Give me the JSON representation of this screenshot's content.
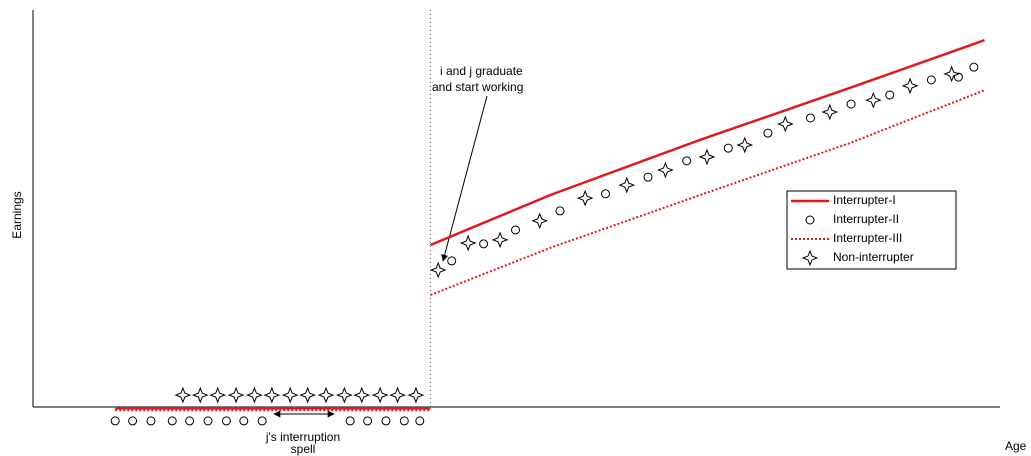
{
  "chart_data": {
    "type": "line",
    "xlabel": "Age",
    "ylabel": "Earnings",
    "xlim": [
      0,
      100
    ],
    "ylim": [
      0,
      100
    ],
    "vline": 41.1,
    "legend": "center right",
    "annotations": [
      "i and j graduate",
      "and start  working",
      "j's interruption",
      "spell"
    ],
    "series": [
      {
        "name": "Interrupter-I",
        "color": "#e0191e",
        "style": "solid",
        "x": [
          8.5,
          41.1,
          41.1,
          41.1,
          53.5,
          69.0,
          84.5,
          98.4
        ],
        "values": [
          -0.3,
          -0.3,
          null,
          40.8,
          53.4,
          67.3,
          80.4,
          92.4
        ]
      },
      {
        "name": "Interrupter-II",
        "color": "#000000",
        "style": "circle",
        "x": [
          8.5,
          10.3,
          12.2,
          14.4,
          16.2,
          18.1,
          20.0,
          21.8,
          23.7,
          32.8,
          34.6,
          36.5,
          38.4,
          40.0,
          43.3,
          46.6,
          49.9,
          54.5,
          59.2,
          63.6,
          67.6,
          71.9,
          76.0,
          80.4,
          84.6,
          88.6,
          92.9,
          95.7,
          97.3
        ],
        "values": [
          -3.5,
          -3.5,
          -3.5,
          -3.5,
          -3.5,
          -3.5,
          -3.5,
          -3.5,
          -3.5,
          -3.5,
          -3.5,
          -3.5,
          -3.5,
          -3.5,
          36.8,
          41.1,
          44.6,
          49.4,
          53.7,
          57.9,
          62.0,
          65.2,
          69.0,
          72.8,
          76.3,
          78.6,
          82.4,
          83.1,
          85.6
        ]
      },
      {
        "name": "Interrupter-III",
        "color": "#e0191e",
        "style": "dotted",
        "x": [
          8.5,
          41.1,
          41.1,
          41.1,
          53.5,
          69.0,
          84.5,
          98.4
        ],
        "values": [
          -0.8,
          -0.8,
          null,
          28.2,
          40.1,
          53.4,
          66.5,
          79.8
        ]
      },
      {
        "name": "Non-interrupter",
        "color": "#000000",
        "style": "star",
        "x": [
          15.5,
          17.3,
          19.1,
          21.0,
          22.9,
          24.7,
          26.6,
          28.4,
          30.3,
          32.2,
          34.0,
          35.9,
          37.7,
          39.6,
          41.9,
          45.0,
          48.3,
          52.4,
          57.1,
          61.4,
          65.4,
          69.7,
          73.6,
          77.8,
          82.4,
          86.9,
          90.7,
          95.0
        ],
        "values": [
          3.0,
          3.0,
          3.0,
          3.0,
          3.0,
          3.0,
          3.0,
          3.0,
          3.0,
          3.0,
          3.0,
          3.0,
          3.0,
          3.0,
          34.5,
          41.3,
          42.1,
          46.9,
          52.6,
          55.9,
          59.7,
          63.0,
          66.0,
          71.3,
          74.3,
          77.3,
          80.9,
          83.9
        ]
      }
    ]
  }
}
